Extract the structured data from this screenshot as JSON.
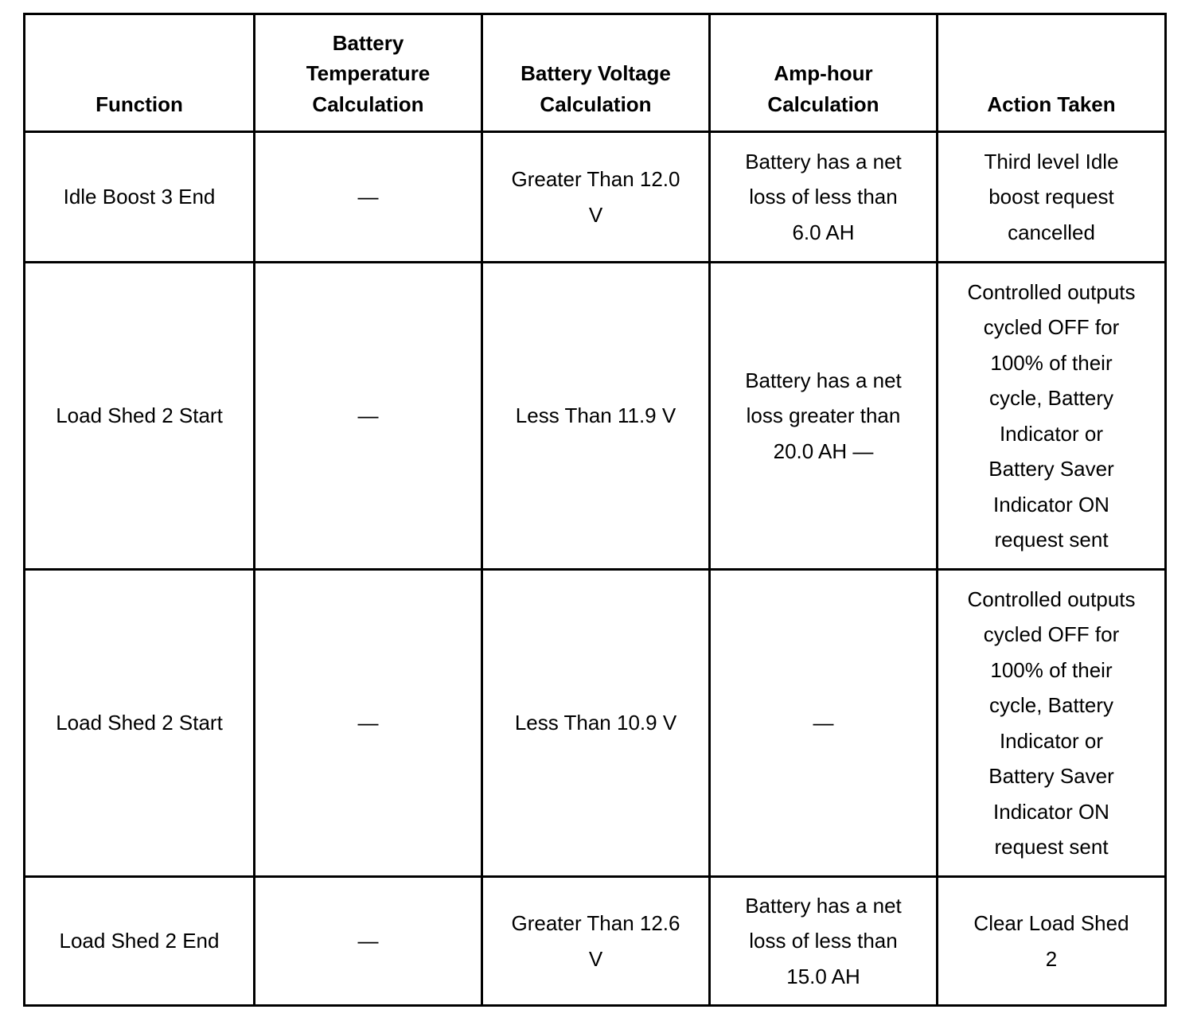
{
  "table": {
    "headers": [
      [
        "Function"
      ],
      [
        "Battery",
        "Temperature",
        "Calculation"
      ],
      [
        "Battery Voltage",
        "Calculation"
      ],
      [
        "Amp-hour",
        "Calculation"
      ],
      [
        "Action Taken"
      ]
    ],
    "rows": [
      [
        [
          "Idle Boost 3 End"
        ],
        [
          "—"
        ],
        [
          "Greater Than 12.0",
          "V"
        ],
        [
          "Battery has a net",
          "loss of less than",
          "6.0 AH"
        ],
        [
          "Third level Idle",
          "boost request",
          "cancelled"
        ]
      ],
      [
        [
          "Load Shed 2 Start"
        ],
        [
          "—"
        ],
        [
          "Less Than 11.9 V"
        ],
        [
          "Battery has a net",
          "loss greater than",
          "20.0 AH —"
        ],
        [
          "Controlled outputs",
          "cycled OFF for",
          "100% of their",
          "cycle, Battery",
          "Indicator or",
          "Battery Saver",
          "Indicator ON",
          "request sent"
        ]
      ],
      [
        [
          "Load Shed 2 Start"
        ],
        [
          "—"
        ],
        [
          "Less Than 10.9 V"
        ],
        [
          "—"
        ],
        [
          "Controlled outputs",
          "cycled OFF for",
          "100% of their",
          "cycle, Battery",
          "Indicator or",
          "Battery Saver",
          "Indicator ON",
          "request sent"
        ]
      ],
      [
        [
          "Load Shed 2 End"
        ],
        [
          "—"
        ],
        [
          "Greater Than 12.6",
          "V"
        ],
        [
          "Battery has a net",
          "loss of less than",
          "15.0 AH"
        ],
        [
          "Clear Load Shed",
          "2"
        ]
      ]
    ]
  }
}
